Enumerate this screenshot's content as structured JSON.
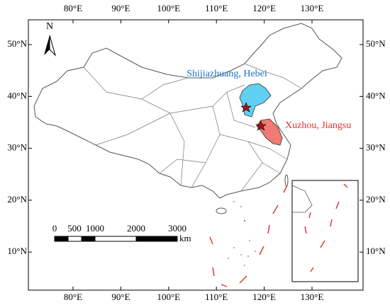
{
  "map": {
    "north_label": "N",
    "longitude_labels": [
      "80°E",
      "90°E",
      "100°E",
      "110°E",
      "120°E",
      "130°E"
    ],
    "latitude_labels": [
      "50°N",
      "40°N",
      "30°N",
      "20°N",
      "10°N"
    ],
    "places": [
      {
        "label": "Shijiazhuang, Hebei"
      },
      {
        "label": "Xuzhou, Jiangsu"
      }
    ],
    "scale_bar": {
      "labels": [
        "0",
        "500",
        "1000",
        "2000",
        "3000"
      ],
      "unit": "km"
    }
  }
}
